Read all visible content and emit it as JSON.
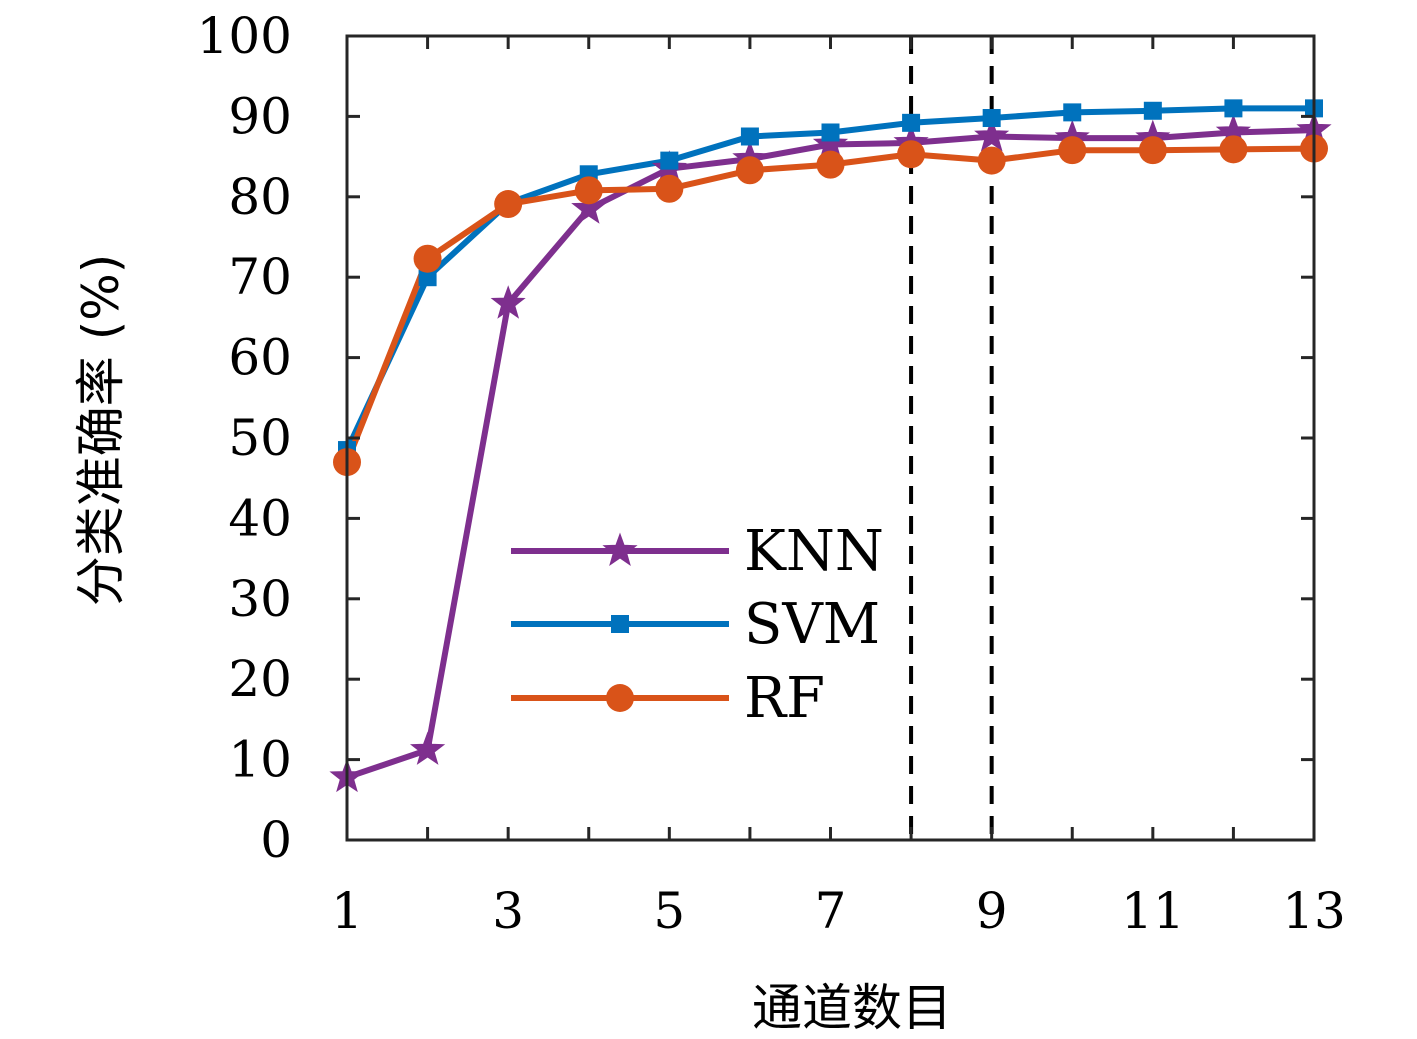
{
  "chart_data": {
    "type": "line",
    "xlabel": "通道数目",
    "ylabel": "分类准确率 (%)",
    "xlim": [
      1,
      13
    ],
    "ylim": [
      0,
      100
    ],
    "x_ticks": [
      1,
      3,
      5,
      7,
      9,
      11,
      13
    ],
    "y_ticks": [
      0,
      10,
      20,
      30,
      40,
      50,
      60,
      70,
      80,
      90,
      100
    ],
    "x": [
      1,
      2,
      3,
      4,
      5,
      6,
      7,
      8,
      9,
      10,
      11,
      12,
      13
    ],
    "grid": false,
    "legend_position": "center-left",
    "reference_lines_x": [
      8,
      9
    ],
    "series": [
      {
        "name": "KNN",
        "color": "#7E2F8E",
        "marker": "star",
        "values": [
          7.8,
          11.2,
          66.7,
          78.5,
          83.5,
          84.7,
          86.5,
          86.7,
          87.5,
          87.3,
          87.3,
          88.0,
          88.3
        ]
      },
      {
        "name": "SVM",
        "color": "#0072BD",
        "marker": "square",
        "values": [
          48.5,
          70.0,
          79.2,
          82.8,
          84.5,
          87.5,
          88.0,
          89.2,
          89.8,
          90.5,
          90.7,
          91.0,
          91.0
        ]
      },
      {
        "name": "RF",
        "color": "#D95319",
        "marker": "circle",
        "values": [
          47.0,
          72.3,
          79.1,
          80.8,
          81.0,
          83.3,
          84.0,
          85.3,
          84.5,
          85.8,
          85.8,
          85.9,
          86.0
        ]
      }
    ]
  }
}
